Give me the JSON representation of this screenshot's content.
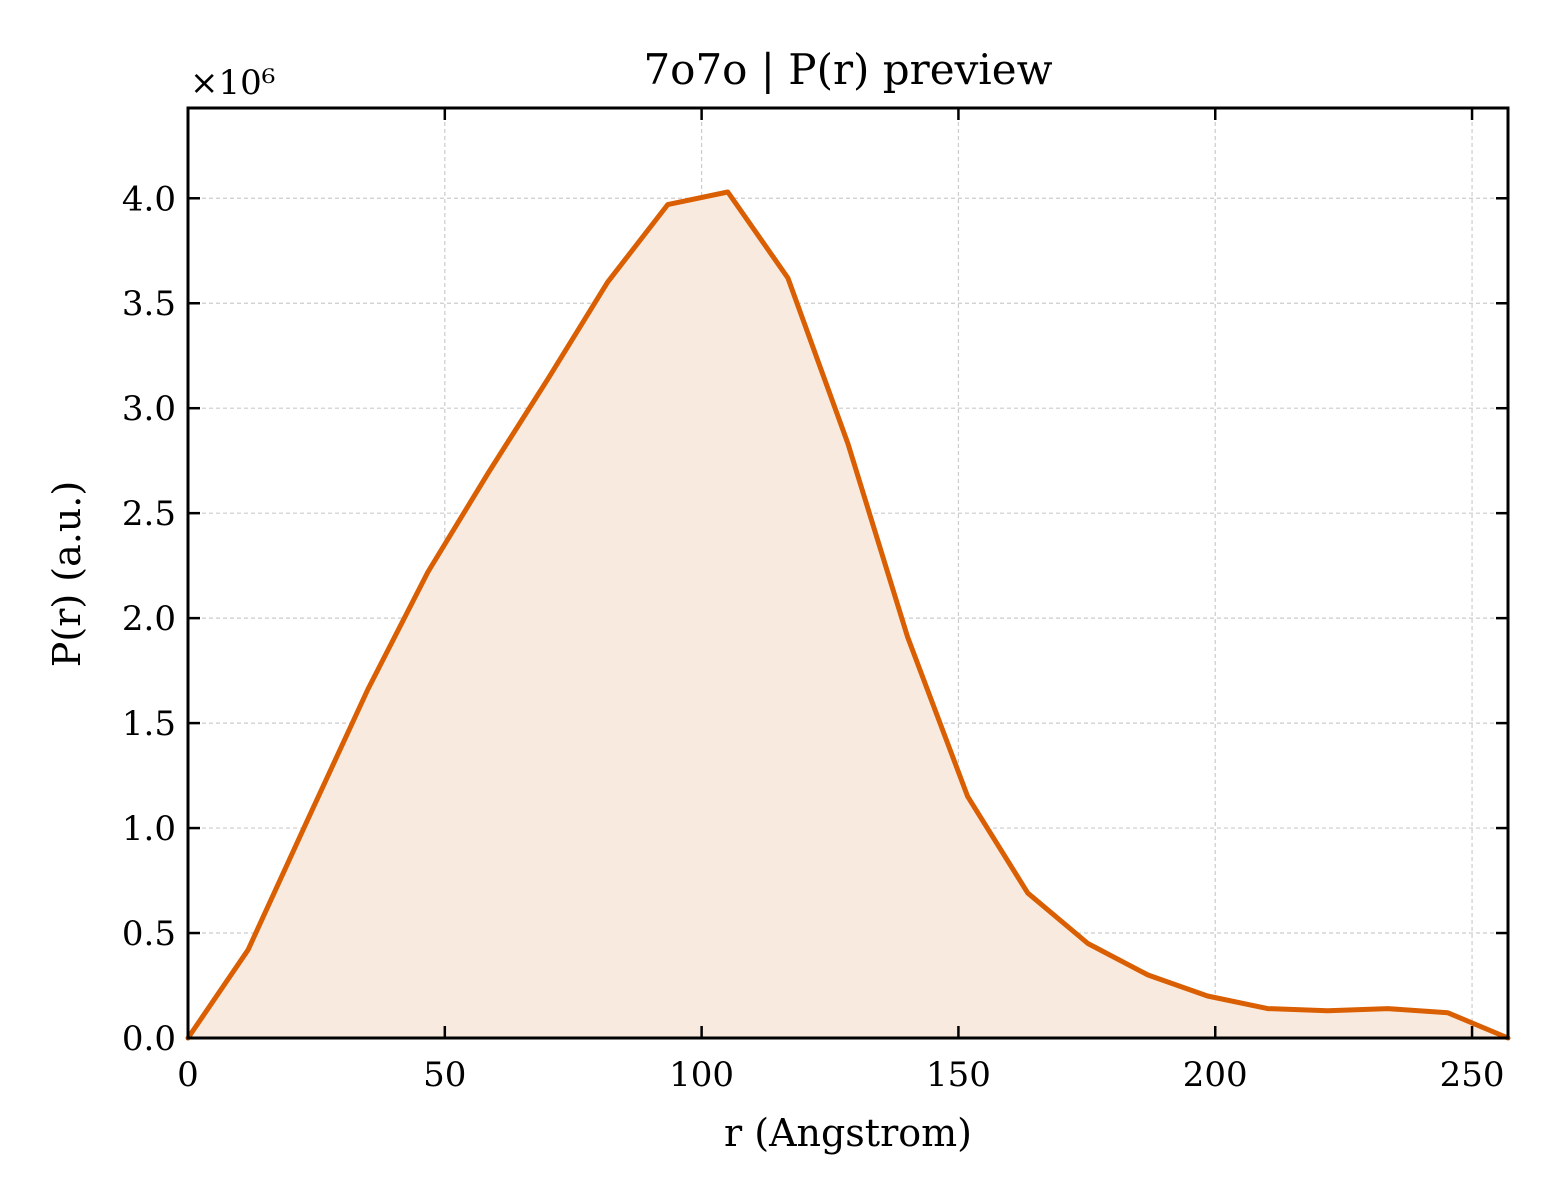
{
  "chart_data": {
    "type": "area",
    "title": "7o7o | P(r) preview",
    "xlabel": "r (Angstrom)",
    "ylabel": "P(r) (a.u.)",
    "y_offset_label": "×10⁶",
    "y_scale_multiplier": 1000000,
    "xlim": [
      0,
      257
    ],
    "ylim": [
      0,
      4.43
    ],
    "x_ticks": [
      0,
      50,
      100,
      150,
      200,
      250
    ],
    "x_tick_labels": [
      "0",
      "50",
      "100",
      "150",
      "200",
      "250"
    ],
    "y_ticks": [
      0,
      0.5,
      1.0,
      1.5,
      2.0,
      2.5,
      3.0,
      3.5,
      4.0
    ],
    "y_tick_labels": [
      "0.0",
      "0.5",
      "1.0",
      "1.5",
      "2.0",
      "2.5",
      "3.0",
      "3.5",
      "4.0"
    ],
    "grid": true,
    "line_color": "#d95f02",
    "fill_color": "#f9eadf",
    "series": [
      {
        "x": [
          0,
          11.7,
          23.3,
          35.0,
          46.7,
          58.4,
          70.1,
          81.7,
          93.4,
          105.1,
          116.8,
          128.5,
          140.1,
          151.8,
          163.5,
          175.2,
          186.9,
          198.5,
          210.2,
          221.9,
          233.6,
          245.3,
          257.0
        ],
        "values": [
          0.0,
          0.42,
          1.04,
          1.66,
          2.22,
          2.69,
          3.14,
          3.6,
          3.97,
          4.03,
          3.62,
          2.83,
          1.91,
          1.15,
          0.69,
          0.45,
          0.3,
          0.2,
          0.14,
          0.13,
          0.14,
          0.12,
          0.0
        ]
      }
    ]
  }
}
